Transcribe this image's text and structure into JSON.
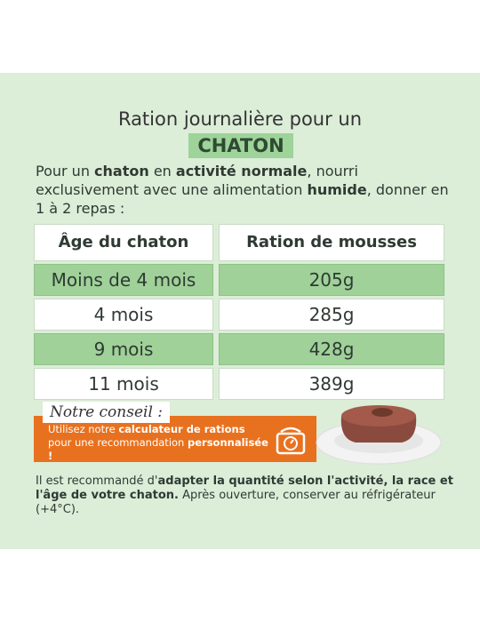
{
  "title": {
    "line1": "Ration journalière pour un",
    "highlight": "CHATON"
  },
  "intro": [
    {
      "text": "Pour un ",
      "bold": false
    },
    {
      "text": "chaton",
      "bold": true
    },
    {
      "text": " en ",
      "bold": false
    },
    {
      "text": "activité normale",
      "bold": true
    },
    {
      "text": ", nourri exclusivement avec une alimentation ",
      "bold": false
    },
    {
      "text": "humide",
      "bold": true
    },
    {
      "text": ", donner en 1 à 2 repas :",
      "bold": false
    }
  ],
  "table": {
    "headers": [
      "Âge du chaton",
      "Ration de mousses"
    ],
    "rows": [
      [
        "Moins de 4 mois",
        "205g"
      ],
      [
        "4 mois",
        "285g"
      ],
      [
        "9 mois",
        "428g"
      ],
      [
        "11 mois",
        "389g"
      ]
    ]
  },
  "advice": {
    "label": "Notre conseil :",
    "text": [
      {
        "text": "Utilisez notre ",
        "bold": false
      },
      {
        "text": "calculateur de rations",
        "bold": true
      },
      {
        "text": " pour une recommandation ",
        "bold": false
      },
      {
        "text": "personnalisée !",
        "bold": true
      }
    ]
  },
  "footer": [
    {
      "text": "Il est recommandé d'",
      "bold": false
    },
    {
      "text": "adapter la quantité selon l'activité, la race et l'âge de votre chaton.",
      "bold": true
    },
    {
      "text": " Après ouverture, conserver au réfrigérateur (+4°C).",
      "bold": false
    }
  ]
}
